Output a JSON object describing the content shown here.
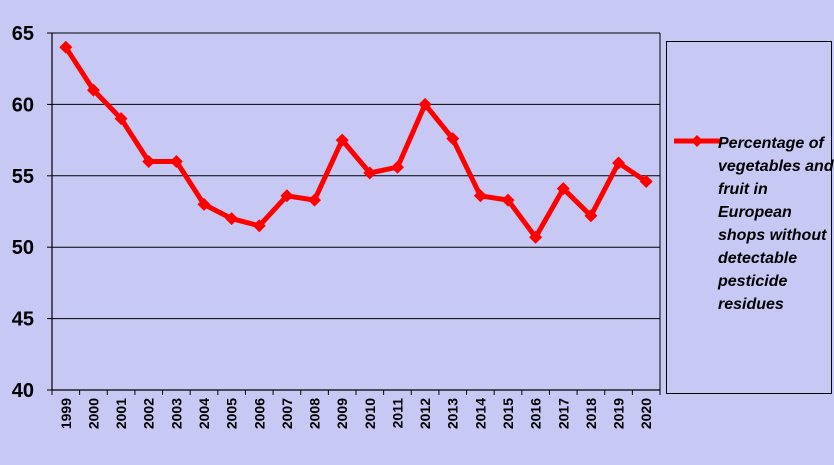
{
  "chart_data": {
    "type": "line",
    "categories": [
      "1999",
      "2000",
      "2001",
      "2002",
      "2003",
      "2004",
      "2005",
      "2006",
      "2007",
      "2008",
      "2009",
      "2010",
      "2011",
      "2012",
      "2013",
      "2014",
      "2015",
      "2016",
      "2017",
      "2018",
      "2019",
      "2020"
    ],
    "series": [
      {
        "name": "Percentage of vegetables and fruit in European shops without detectable pesticide residues",
        "values": [
          64,
          61,
          59,
          56,
          56,
          53,
          52,
          51.5,
          53.6,
          53.3,
          57.5,
          55.2,
          55.6,
          60,
          57.6,
          53.6,
          53.3,
          50.7,
          54.1,
          52.2,
          55.9,
          54.6
        ]
      }
    ],
    "ylim": [
      40,
      65
    ],
    "yticks": [
      "40",
      "45",
      "50",
      "55",
      "60",
      "65"
    ],
    "grid": true,
    "legend_position": "right",
    "colors": {
      "background": "#c8c8f4",
      "plot_background": "#c8c8f4",
      "line": "#ff0000",
      "grid": "#000000",
      "axis": "#000000"
    }
  }
}
